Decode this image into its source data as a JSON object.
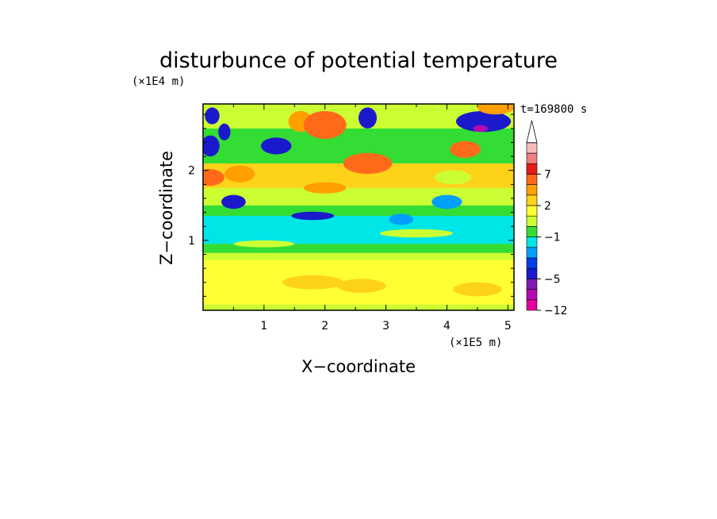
{
  "chart_data": {
    "type": "heatmap",
    "title": "disturbunce of potential temperature",
    "xlabel": "X−coordinate",
    "ylabel": "Z−coordinate",
    "x_unit": "(×1E5 m)",
    "y_unit": "(×1E4 m)",
    "time_label": "t=169800 s",
    "xlim": [
      0,
      5.1
    ],
    "ylim": [
      0,
      2.95
    ],
    "x_ticks": [
      1,
      2,
      3,
      4,
      5
    ],
    "x_tick_labels": [
      "1",
      "2",
      "3",
      "4",
      "5"
    ],
    "y_ticks": [
      1,
      2
    ],
    "y_tick_labels": [
      "1",
      "2"
    ],
    "colorbar": {
      "levels": [
        -12,
        -9,
        -7,
        -5,
        -4,
        -3,
        -2,
        -1,
        0,
        1,
        2,
        3,
        5,
        7,
        9,
        12
      ],
      "labels": [
        {
          "value": -12,
          "text": "−12"
        },
        {
          "value": -5,
          "text": "−5"
        },
        {
          "value": -1,
          "text": "−1"
        },
        {
          "value": 2,
          "text": "2"
        },
        {
          "value": 7,
          "text": "7"
        }
      ],
      "colors": [
        "#e60099",
        "#b30ab3",
        "#7f1ab3",
        "#1a1acc",
        "#0040e6",
        "#00a0ff",
        "#00e6e6",
        "#33dd33",
        "#ccff33",
        "#ffff33",
        "#ffd21a",
        "#ffa000",
        "#ff6a1a",
        "#e61a1a",
        "#f08080",
        "#f5bcbc"
      ],
      "extend": "max"
    },
    "bands": [
      {
        "z_from": 0.0,
        "z_to": 0.08,
        "value": 0.5
      },
      {
        "z_from": 0.08,
        "z_to": 0.72,
        "value": 1.6
      },
      {
        "z_from": 0.72,
        "z_to": 0.82,
        "value": 0.5
      },
      {
        "z_from": 0.82,
        "z_to": 0.95,
        "value": -0.5
      },
      {
        "z_from": 0.95,
        "z_to": 1.35,
        "value": -1.5
      },
      {
        "z_from": 1.35,
        "z_to": 1.5,
        "value": -0.5
      },
      {
        "z_from": 1.5,
        "z_to": 1.75,
        "value": 0.5
      },
      {
        "z_from": 1.75,
        "z_to": 2.1,
        "value": 2.5
      },
      {
        "z_from": 2.1,
        "z_to": 2.6,
        "value": -0.5
      },
      {
        "z_from": 2.6,
        "z_to": 2.95,
        "value": 0.5
      }
    ],
    "features": [
      {
        "x": 0.15,
        "z": 2.78,
        "rx": 0.12,
        "rz": 0.12,
        "value": -4.5
      },
      {
        "x": 0.12,
        "z": 2.35,
        "rx": 0.15,
        "rz": 0.15,
        "value": -4.5
      },
      {
        "x": 0.35,
        "z": 2.55,
        "rx": 0.1,
        "rz": 0.12,
        "value": -4.5
      },
      {
        "x": 0.1,
        "z": 1.9,
        "rx": 0.25,
        "rz": 0.12,
        "value": 5.5
      },
      {
        "x": 0.5,
        "z": 1.55,
        "rx": 0.2,
        "rz": 0.1,
        "value": -4.5
      },
      {
        "x": 0.6,
        "z": 1.95,
        "rx": 0.25,
        "rz": 0.12,
        "value": 3.5
      },
      {
        "x": 1.2,
        "z": 2.35,
        "rx": 0.25,
        "rz": 0.12,
        "value": -4.5
      },
      {
        "x": 1.6,
        "z": 2.7,
        "rx": 0.2,
        "rz": 0.15,
        "value": 3.5
      },
      {
        "x": 2.0,
        "z": 2.65,
        "rx": 0.35,
        "rz": 0.2,
        "value": 5.5
      },
      {
        "x": 2.7,
        "z": 2.75,
        "rx": 0.15,
        "rz": 0.15,
        "value": -4.5
      },
      {
        "x": 2.7,
        "z": 2.1,
        "rx": 0.4,
        "rz": 0.15,
        "value": 5.5
      },
      {
        "x": 2.0,
        "z": 1.75,
        "rx": 0.35,
        "rz": 0.08,
        "value": 3.5
      },
      {
        "x": 1.8,
        "z": 1.35,
        "rx": 0.35,
        "rz": 0.06,
        "value": -4.5
      },
      {
        "x": 3.25,
        "z": 1.3,
        "rx": 0.2,
        "rz": 0.08,
        "value": -2.5
      },
      {
        "x": 4.0,
        "z": 1.55,
        "rx": 0.25,
        "rz": 0.1,
        "value": -2.5
      },
      {
        "x": 4.3,
        "z": 2.3,
        "rx": 0.25,
        "rz": 0.12,
        "value": 5.5
      },
      {
        "x": 4.6,
        "z": 2.7,
        "rx": 0.45,
        "rz": 0.15,
        "value": -4.5
      },
      {
        "x": 4.55,
        "z": 2.6,
        "rx": 0.12,
        "rz": 0.05,
        "value": -7.5
      },
      {
        "x": 4.8,
        "z": 2.9,
        "rx": 0.3,
        "rz": 0.1,
        "value": 3.5
      },
      {
        "x": 4.1,
        "z": 1.9,
        "rx": 0.3,
        "rz": 0.1,
        "value": 0.5
      },
      {
        "x": 1.8,
        "z": 0.4,
        "rx": 0.5,
        "rz": 0.1,
        "value": 2.5
      },
      {
        "x": 2.6,
        "z": 0.35,
        "rx": 0.4,
        "rz": 0.1,
        "value": 2.5
      },
      {
        "x": 4.5,
        "z": 0.3,
        "rx": 0.4,
        "rz": 0.1,
        "value": 2.5
      },
      {
        "x": 1.0,
        "z": 0.95,
        "rx": 0.5,
        "rz": 0.05,
        "value": 0.5
      },
      {
        "x": 3.5,
        "z": 1.1,
        "rx": 0.6,
        "rz": 0.06,
        "value": 0.5
      }
    ]
  }
}
